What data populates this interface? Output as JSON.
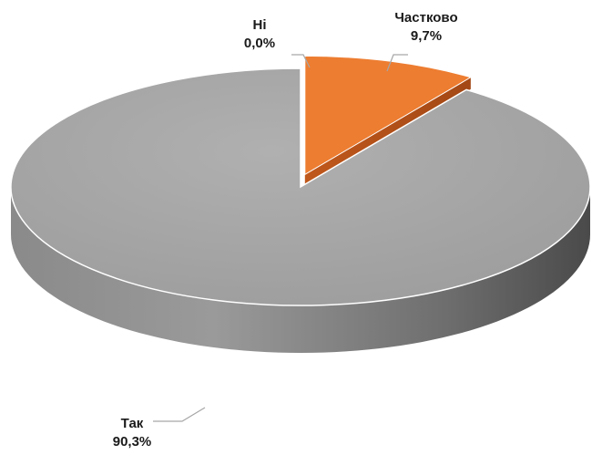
{
  "chart_data": {
    "type": "pie",
    "title": "",
    "slices": [
      {
        "label": "Так",
        "value": 90.3,
        "value_label": "90,3%",
        "color": "#a6a6a6"
      },
      {
        "label": "Ні",
        "value": 0.0,
        "value_label": "0,0%",
        "color": "#5b9bd5"
      },
      {
        "label": "Частково",
        "value": 9.7,
        "value_label": "9,7%",
        "color": "#ed7d31"
      }
    ],
    "style": "3d",
    "legend": "none"
  }
}
